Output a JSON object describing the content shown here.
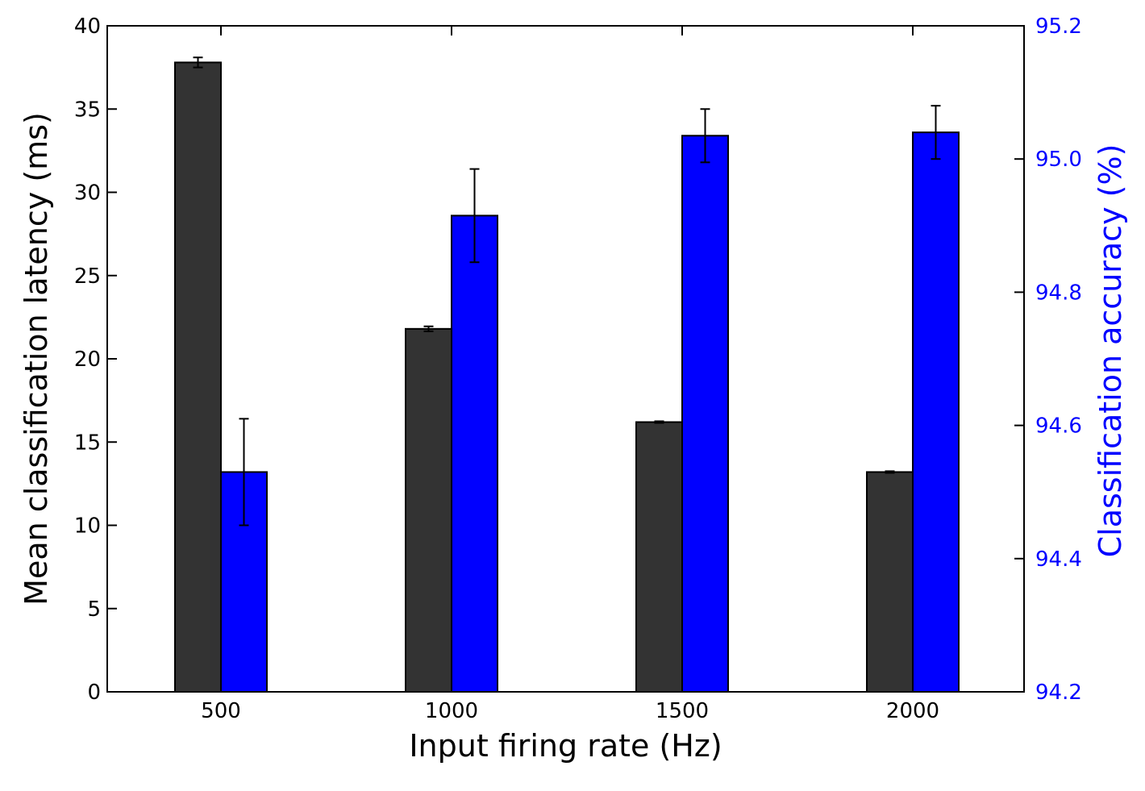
{
  "chart_data": {
    "type": "bar",
    "categories": [
      "500",
      "1000",
      "1500",
      "2000"
    ],
    "xlabel": "Input firing rate (Hz)",
    "ylabel_left": "Mean classification latency (ms)",
    "ylabel_right": "Classification accuracy (%)",
    "y_left": {
      "lim": [
        0,
        40
      ],
      "ticks": [
        0,
        5,
        10,
        15,
        20,
        25,
        30,
        35,
        40
      ],
      "tick_labels": [
        "0",
        "5",
        "10",
        "15",
        "20",
        "25",
        "30",
        "35",
        "40"
      ]
    },
    "y_right": {
      "lim": [
        94.2,
        95.2
      ],
      "ticks": [
        94.2,
        94.4,
        94.6,
        94.8,
        95.0,
        95.2
      ],
      "tick_labels": [
        "94.2",
        "94.4",
        "94.6",
        "94.8",
        "95.0",
        "95.2"
      ]
    },
    "series": [
      {
        "axis": "left",
        "color": "#333333",
        "values": [
          37.8,
          21.8,
          16.2,
          13.2
        ],
        "errors": [
          0.3,
          0.15,
          0.05,
          0.05
        ]
      },
      {
        "axis": "right",
        "color": "#0000ff",
        "values": [
          94.53,
          94.915,
          95.035,
          95.04
        ],
        "errors": [
          0.08,
          0.07,
          0.04,
          0.04
        ]
      }
    ],
    "grid": false,
    "legend": "none"
  },
  "colors": {
    "right_axis": "#0000ff",
    "left_axis": "#000000"
  }
}
